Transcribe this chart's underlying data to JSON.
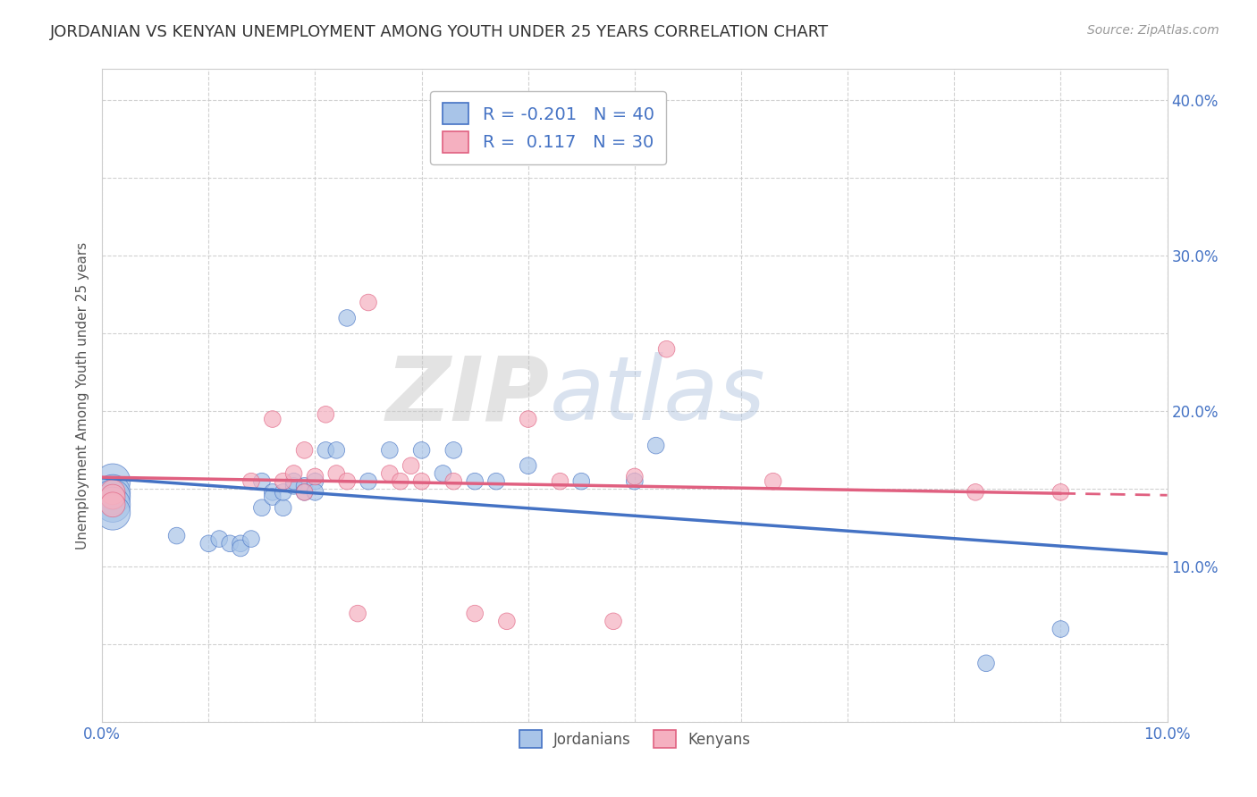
{
  "title": "JORDANIAN VS KENYAN UNEMPLOYMENT AMONG YOUTH UNDER 25 YEARS CORRELATION CHART",
  "source": "Source: ZipAtlas.com",
  "ylabel": "Unemployment Among Youth under 25 years",
  "xlim": [
    0.0,
    0.1
  ],
  "ylim": [
    0.0,
    0.42
  ],
  "xticks": [
    0.0,
    0.01,
    0.02,
    0.03,
    0.04,
    0.05,
    0.06,
    0.07,
    0.08,
    0.09,
    0.1
  ],
  "yticks": [
    0.0,
    0.05,
    0.1,
    0.15,
    0.2,
    0.25,
    0.3,
    0.35,
    0.4
  ],
  "xticklabels": [
    "0.0%",
    "",
    "",
    "",
    "",
    "",
    "",
    "",
    "",
    "",
    "10.0%"
  ],
  "yticklabels": [
    "",
    "",
    "10.0%",
    "",
    "20.0%",
    "",
    "30.0%",
    "",
    "40.0%"
  ],
  "legend_r_jordan": "-0.201",
  "legend_n_jordan": "40",
  "legend_r_kenya": " 0.117",
  "legend_n_kenya": "30",
  "jordan_color": "#a8c4e8",
  "kenya_color": "#f5b0c0",
  "jordan_line_color": "#4472c4",
  "kenya_line_color": "#e06080",
  "watermark_zip": "ZIP",
  "watermark_atlas": "atlas",
  "background_color": "#ffffff",
  "grid_color": "#cccccc",
  "jordan_x": [
    0.001,
    0.001,
    0.001,
    0.001,
    0.001,
    0.007,
    0.01,
    0.011,
    0.012,
    0.013,
    0.013,
    0.014,
    0.015,
    0.015,
    0.016,
    0.016,
    0.017,
    0.017,
    0.018,
    0.018,
    0.019,
    0.019,
    0.02,
    0.02,
    0.021,
    0.022,
    0.023,
    0.025,
    0.027,
    0.03,
    0.032,
    0.033,
    0.035,
    0.037,
    0.04,
    0.045,
    0.05,
    0.052,
    0.083,
    0.09
  ],
  "jordan_y": [
    0.155,
    0.148,
    0.145,
    0.14,
    0.135,
    0.12,
    0.115,
    0.118,
    0.115,
    0.115,
    0.112,
    0.118,
    0.155,
    0.138,
    0.148,
    0.145,
    0.138,
    0.148,
    0.152,
    0.155,
    0.152,
    0.148,
    0.155,
    0.148,
    0.175,
    0.175,
    0.26,
    0.155,
    0.175,
    0.175,
    0.16,
    0.175,
    0.155,
    0.155,
    0.165,
    0.155,
    0.155,
    0.178,
    0.038,
    0.06
  ],
  "jordan_sizes": [
    800,
    800,
    800,
    800,
    800,
    180,
    180,
    180,
    180,
    180,
    180,
    180,
    180,
    180,
    180,
    180,
    180,
    180,
    180,
    180,
    180,
    180,
    180,
    180,
    180,
    180,
    180,
    180,
    180,
    180,
    180,
    180,
    180,
    180,
    180,
    180,
    180,
    180,
    180,
    180
  ],
  "kenya_x": [
    0.001,
    0.001,
    0.001,
    0.014,
    0.016,
    0.017,
    0.018,
    0.019,
    0.019,
    0.02,
    0.021,
    0.022,
    0.023,
    0.024,
    0.025,
    0.027,
    0.028,
    0.029,
    0.03,
    0.033,
    0.035,
    0.038,
    0.04,
    0.043,
    0.048,
    0.05,
    0.053,
    0.063,
    0.082,
    0.09
  ],
  "kenya_y": [
    0.148,
    0.145,
    0.14,
    0.155,
    0.195,
    0.155,
    0.16,
    0.175,
    0.148,
    0.158,
    0.198,
    0.16,
    0.155,
    0.07,
    0.27,
    0.16,
    0.155,
    0.165,
    0.155,
    0.155,
    0.07,
    0.065,
    0.195,
    0.155,
    0.065,
    0.158,
    0.24,
    0.155,
    0.148,
    0.148
  ],
  "kenya_sizes": [
    400,
    400,
    400,
    180,
    180,
    180,
    180,
    180,
    180,
    180,
    180,
    180,
    180,
    180,
    180,
    180,
    180,
    180,
    180,
    180,
    180,
    180,
    180,
    180,
    180,
    180,
    180,
    180,
    180,
    180
  ]
}
